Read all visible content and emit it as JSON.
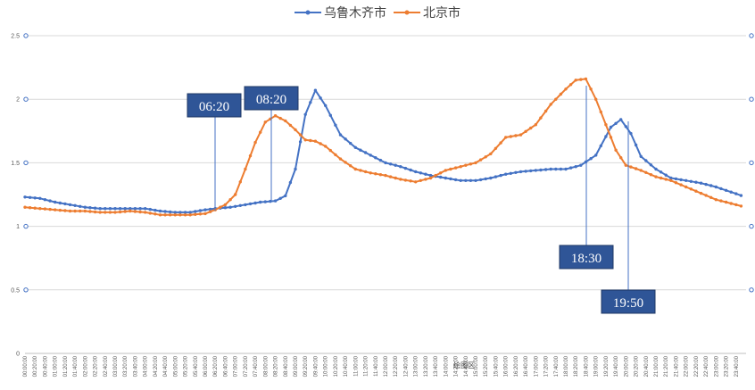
{
  "chart_data": {
    "type": "line",
    "title": "",
    "xlabel": "",
    "ylabel": "",
    "ylim": [
      0,
      2.5
    ],
    "yticks": [
      "0",
      "0.5",
      "1",
      "1.5",
      "2",
      "2.5"
    ],
    "grid": true,
    "legend_position": "top-center",
    "x_tick_labels": [
      "00:00:00",
      "00:20:00",
      "00:40:00",
      "01:00:00",
      "01:20:00",
      "01:40:00",
      "02:00:00",
      "02:20:00",
      "02:40:00",
      "03:00:00",
      "03:20:00",
      "03:40:00",
      "04:00:00",
      "04:20:00",
      "04:40:00",
      "05:00:00",
      "05:20:00",
      "05:40:00",
      "06:00:00",
      "06:20:00",
      "06:40:00",
      "07:00:00",
      "07:20:00",
      "07:40:00",
      "08:00:00",
      "08:20:00",
      "08:40:00",
      "09:00:00",
      "09:20:00",
      "09:40:00",
      "10:00:00",
      "10:20:00",
      "10:40:00",
      "11:00:00",
      "11:20:00",
      "11:40:00",
      "12:00:00",
      "12:20:00",
      "12:40:00",
      "13:00:00",
      "13:20:00",
      "13:40:00",
      "14:00:00",
      "14:20:00",
      "14:40:00",
      "15:00:00",
      "15:20:00",
      "15:40:00",
      "16:00:00",
      "16:20:00",
      "16:40:00",
      "17:00:00",
      "17:20:00",
      "17:40:00",
      "18:00:00",
      "18:20:00",
      "18:40:00",
      "19:00:00",
      "19:20:00",
      "19:40:00",
      "20:00:00",
      "20:20:00",
      "20:40:00",
      "21:00:00",
      "21:20:00",
      "21:40:00",
      "22:00:00",
      "22:20:00",
      "22:40:00",
      "23:00:00",
      "23:20:00",
      "23:40:00"
    ],
    "hover_label": "绘图区",
    "series": [
      {
        "name": "乌鲁木齐市",
        "color": "#4472C4",
        "anchors": [
          [
            "00:00",
            1.23
          ],
          [
            "00:30",
            1.22
          ],
          [
            "01:00",
            1.19
          ],
          [
            "01:30",
            1.17
          ],
          [
            "02:00",
            1.15
          ],
          [
            "02:30",
            1.14
          ],
          [
            "03:00",
            1.14
          ],
          [
            "03:30",
            1.14
          ],
          [
            "04:00",
            1.14
          ],
          [
            "04:30",
            1.12
          ],
          [
            "05:00",
            1.11
          ],
          [
            "05:30",
            1.11
          ],
          [
            "06:00",
            1.13
          ],
          [
            "06:20",
            1.14
          ],
          [
            "06:50",
            1.15
          ],
          [
            "07:20",
            1.17
          ],
          [
            "07:50",
            1.19
          ],
          [
            "08:20",
            1.2
          ],
          [
            "08:40",
            1.24
          ],
          [
            "09:00",
            1.45
          ],
          [
            "09:20",
            1.88
          ],
          [
            "09:40",
            2.07
          ],
          [
            "10:00",
            1.95
          ],
          [
            "10:30",
            1.72
          ],
          [
            "11:00",
            1.62
          ],
          [
            "11:30",
            1.56
          ],
          [
            "12:00",
            1.5
          ],
          [
            "12:30",
            1.47
          ],
          [
            "13:00",
            1.43
          ],
          [
            "13:30",
            1.4
          ],
          [
            "14:00",
            1.38
          ],
          [
            "14:30",
            1.36
          ],
          [
            "15:00",
            1.36
          ],
          [
            "15:30",
            1.38
          ],
          [
            "16:00",
            1.41
          ],
          [
            "16:30",
            1.43
          ],
          [
            "17:00",
            1.44
          ],
          [
            "17:30",
            1.45
          ],
          [
            "18:00",
            1.45
          ],
          [
            "18:30",
            1.48
          ],
          [
            "19:00",
            1.56
          ],
          [
            "19:30",
            1.78
          ],
          [
            "19:50",
            1.84
          ],
          [
            "20:10",
            1.73
          ],
          [
            "20:30",
            1.55
          ],
          [
            "21:00",
            1.45
          ],
          [
            "21:30",
            1.38
          ],
          [
            "22:00",
            1.36
          ],
          [
            "22:30",
            1.34
          ],
          [
            "23:00",
            1.31
          ],
          [
            "23:30",
            1.27
          ],
          [
            "23:59",
            1.23
          ]
        ]
      },
      {
        "name": "北京市",
        "color": "#ED7D31",
        "anchors": [
          [
            "00:00",
            1.15
          ],
          [
            "00:30",
            1.14
          ],
          [
            "01:00",
            1.13
          ],
          [
            "01:30",
            1.12
          ],
          [
            "02:00",
            1.12
          ],
          [
            "02:30",
            1.11
          ],
          [
            "03:00",
            1.11
          ],
          [
            "03:30",
            1.12
          ],
          [
            "04:00",
            1.11
          ],
          [
            "04:30",
            1.09
          ],
          [
            "05:00",
            1.09
          ],
          [
            "05:30",
            1.09
          ],
          [
            "06:00",
            1.1
          ],
          [
            "06:20",
            1.13
          ],
          [
            "06:40",
            1.17
          ],
          [
            "07:00",
            1.25
          ],
          [
            "07:20",
            1.45
          ],
          [
            "07:40",
            1.66
          ],
          [
            "08:00",
            1.82
          ],
          [
            "08:20",
            1.87
          ],
          [
            "08:40",
            1.83
          ],
          [
            "09:00",
            1.76
          ],
          [
            "09:20",
            1.68
          ],
          [
            "09:40",
            1.67
          ],
          [
            "10:00",
            1.63
          ],
          [
            "10:30",
            1.53
          ],
          [
            "11:00",
            1.45
          ],
          [
            "11:30",
            1.42
          ],
          [
            "12:00",
            1.4
          ],
          [
            "12:30",
            1.37
          ],
          [
            "13:00",
            1.35
          ],
          [
            "13:30",
            1.38
          ],
          [
            "14:00",
            1.44
          ],
          [
            "14:30",
            1.47
          ],
          [
            "15:00",
            1.5
          ],
          [
            "15:30",
            1.57
          ],
          [
            "16:00",
            1.7
          ],
          [
            "16:30",
            1.72
          ],
          [
            "17:00",
            1.8
          ],
          [
            "17:30",
            1.96
          ],
          [
            "18:00",
            2.08
          ],
          [
            "18:20",
            2.15
          ],
          [
            "18:40",
            2.16
          ],
          [
            "19:00",
            2.0
          ],
          [
            "19:20",
            1.8
          ],
          [
            "19:40",
            1.6
          ],
          [
            "20:00",
            1.48
          ],
          [
            "20:30",
            1.44
          ],
          [
            "21:00",
            1.39
          ],
          [
            "21:30",
            1.36
          ],
          [
            "22:00",
            1.31
          ],
          [
            "22:30",
            1.26
          ],
          [
            "23:00",
            1.21
          ],
          [
            "23:30",
            1.18
          ],
          [
            "23:59",
            1.15
          ]
        ]
      }
    ],
    "annotations": [
      {
        "label": "06:20",
        "time": "06:20"
      },
      {
        "label": "08:20",
        "time": "08:20"
      },
      {
        "label": "18:30",
        "time": "18:30"
      },
      {
        "label": "19:50",
        "time": "19:50"
      }
    ]
  }
}
